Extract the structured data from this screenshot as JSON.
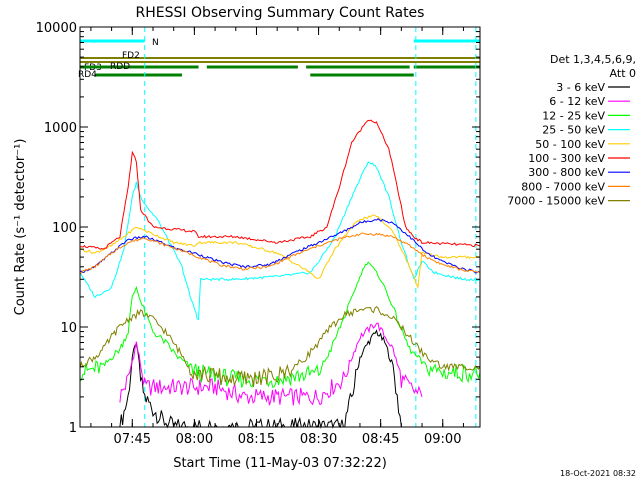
{
  "chart_data": {
    "type": "line",
    "title": "RHESSI Observing Summary Count Rates",
    "xlabel": "Start Time (11-May-03 07:32:22)",
    "ylabel": "Count Rate (s⁻¹ detector⁻¹)",
    "yscale": "log",
    "xlim": [
      "07:32:22",
      "09:09:00"
    ],
    "ylim": [
      1,
      10000
    ],
    "x_ticks": [
      "07:45",
      "08:00",
      "08:15",
      "08:30",
      "08:45",
      "09:00"
    ],
    "y_ticks": [
      "1",
      "10",
      "100",
      "1000",
      "10000"
    ],
    "legend_title": [
      "Det 1,3,4,5,6,9,",
      "Att 0"
    ],
    "legend_position": "right",
    "footer_date": "18-Oct-2021 08:32",
    "flag_bars": [
      {
        "label": "N",
        "color": "#00ffff",
        "segments": [
          [
            "07:32:22",
            "07:48:00"
          ],
          [
            "08:53:00",
            "09:09:00"
          ]
        ]
      },
      {
        "label": "FD2",
        "color": "#808000",
        "segments": [
          [
            "07:32:22",
            "09:09:00"
          ]
        ]
      },
      {
        "label": "FD3",
        "color": "#808000",
        "segments": [
          [
            "07:32:22",
            "09:09:00"
          ]
        ]
      },
      {
        "label": "RDD",
        "color": "#008000",
        "segments": [
          [
            "07:32:22",
            "08:01:00"
          ],
          [
            "08:03:00",
            "08:25:00"
          ],
          [
            "08:27:00",
            "08:52:00"
          ],
          [
            "08:53:00",
            "09:09:00"
          ]
        ]
      },
      {
        "label": "RD4",
        "color": "#008000",
        "segments": [
          [
            "07:36:00",
            "07:57:00"
          ],
          [
            "08:28:00",
            "08:53:00"
          ]
        ]
      }
    ],
    "night_markers": [
      "07:48:00",
      "08:53:30",
      "09:08:00"
    ],
    "series": [
      {
        "name": "3 - 6 keV",
        "color": "#000000",
        "points": [
          [
            "07:42:00",
            1
          ],
          [
            "07:44:00",
            2
          ],
          [
            "07:45:00",
            5
          ],
          [
            "07:46:00",
            7
          ],
          [
            "07:47:00",
            3
          ],
          [
            "07:48:00",
            2
          ],
          [
            "07:50:00",
            1.5
          ],
          [
            "07:52:00",
            1.2
          ],
          [
            "07:55:00",
            1
          ],
          [
            "08:36:00",
            1
          ],
          [
            "08:38:00",
            2
          ],
          [
            "08:40:00",
            5
          ],
          [
            "08:42:00",
            7
          ],
          [
            "08:44:00",
            9
          ],
          [
            "08:46:00",
            7
          ],
          [
            "08:48:00",
            4
          ],
          [
            "08:49:00",
            2
          ],
          [
            "08:50:00",
            1
          ]
        ]
      },
      {
        "name": "6 - 12 keV",
        "color": "#ff00ff",
        "points": [
          [
            "07:42:00",
            2
          ],
          [
            "07:44:00",
            3
          ],
          [
            "07:46:00",
            7
          ],
          [
            "07:48:00",
            2.5
          ],
          [
            "07:52:00",
            2.5
          ],
          [
            "07:58:00",
            2.5
          ],
          [
            "08:05:00",
            2.5
          ],
          [
            "08:12:00",
            2
          ],
          [
            "08:16:00",
            2
          ],
          [
            "08:30:00",
            2
          ],
          [
            "08:36:00",
            3
          ],
          [
            "08:40:00",
            8
          ],
          [
            "08:44:00",
            11
          ],
          [
            "08:48:00",
            6
          ],
          [
            "08:50:00",
            3
          ],
          [
            "08:52:00",
            2.5
          ],
          [
            "08:55:00",
            2
          ]
        ]
      },
      {
        "name": "12 - 25 keV",
        "color": "#00ff00",
        "points": [
          [
            "07:32:22",
            3.5
          ],
          [
            "07:38:00",
            4
          ],
          [
            "07:40:00",
            5
          ],
          [
            "07:42:00",
            6
          ],
          [
            "07:44:00",
            9
          ],
          [
            "07:45:00",
            20
          ],
          [
            "07:46:00",
            25
          ],
          [
            "07:47:00",
            18
          ],
          [
            "07:50:00",
            9
          ],
          [
            "07:53:00",
            7
          ],
          [
            "07:56:00",
            5
          ],
          [
            "07:59:00",
            4
          ],
          [
            "08:01:00",
            3.5
          ],
          [
            "08:10:00",
            3
          ],
          [
            "08:20:00",
            3
          ],
          [
            "08:30:00",
            3.5
          ],
          [
            "08:33:00",
            6
          ],
          [
            "08:36:00",
            12
          ],
          [
            "08:39:00",
            25
          ],
          [
            "08:41:00",
            40
          ],
          [
            "08:42:00",
            45
          ],
          [
            "08:44:00",
            35
          ],
          [
            "08:46:00",
            25
          ],
          [
            "08:49:00",
            12
          ],
          [
            "08:52:00",
            6
          ],
          [
            "08:56:00",
            4
          ],
          [
            "09:00:00",
            3.5
          ],
          [
            "09:09:00",
            3.5
          ]
        ]
      },
      {
        "name": "25 - 50 keV",
        "color": "#00ffff",
        "points": [
          [
            "07:32:22",
            35
          ],
          [
            "07:36:00",
            20
          ],
          [
            "07:40:00",
            25
          ],
          [
            "07:43:00",
            60
          ],
          [
            "07:45:00",
            200
          ],
          [
            "07:46:00",
            280
          ],
          [
            "07:47:00",
            200
          ],
          [
            "07:49:00",
            150
          ],
          [
            "07:51:00",
            120
          ],
          [
            "07:54:00",
            70
          ],
          [
            "07:57:00",
            40
          ],
          [
            "07:59:00",
            20
          ],
          [
            "08:01:00",
            12
          ],
          [
            "08:01:30",
            30
          ],
          [
            "08:10:00",
            30
          ],
          [
            "08:20:00",
            32
          ],
          [
            "08:28:00",
            35
          ],
          [
            "08:30:00",
            45
          ],
          [
            "08:34:00",
            80
          ],
          [
            "08:38:00",
            200
          ],
          [
            "08:42:00",
            450
          ],
          [
            "08:44:00",
            400
          ],
          [
            "08:47:00",
            200
          ],
          [
            "08:50:00",
            70
          ],
          [
            "08:53:00",
            30
          ],
          [
            "08:55:00",
            45
          ],
          [
            "08:58:00",
            35
          ],
          [
            "09:05:00",
            30
          ],
          [
            "09:09:00",
            30
          ]
        ]
      },
      {
        "name": "50 - 100 keV",
        "color": "#ffcc00",
        "points": [
          [
            "07:32:22",
            60
          ],
          [
            "07:36:00",
            55
          ],
          [
            "07:40:00",
            65
          ],
          [
            "07:43:00",
            80
          ],
          [
            "07:46:00",
            100
          ],
          [
            "07:50:00",
            85
          ],
          [
            "07:55:00",
            70
          ],
          [
            "08:00:00",
            65
          ],
          [
            "08:01:00",
            70
          ],
          [
            "08:10:00",
            70
          ],
          [
            "08:20:00",
            55
          ],
          [
            "08:28:00",
            35
          ],
          [
            "08:30:00",
            30
          ],
          [
            "08:34:00",
            60
          ],
          [
            "08:38:00",
            100
          ],
          [
            "08:40:00",
            120
          ],
          [
            "08:44:00",
            130
          ],
          [
            "08:48:00",
            90
          ],
          [
            "08:52:00",
            40
          ],
          [
            "08:54:00",
            25
          ],
          [
            "08:55:00",
            55
          ],
          [
            "09:00:00",
            50
          ],
          [
            "09:09:00",
            50
          ]
        ]
      },
      {
        "name": "100 - 300 keV",
        "color": "#ff0000",
        "points": [
          [
            "07:32:22",
            65
          ],
          [
            "07:38:00",
            60
          ],
          [
            "07:42:00",
            80
          ],
          [
            "07:44:00",
            250
          ],
          [
            "07:45:00",
            550
          ],
          [
            "07:46:00",
            450
          ],
          [
            "07:47:00",
            150
          ],
          [
            "07:50:00",
            100
          ],
          [
            "07:55:00",
            95
          ],
          [
            "08:00:00",
            90
          ],
          [
            "08:01:00",
            80
          ],
          [
            "08:10:00",
            80
          ],
          [
            "08:20:00",
            70
          ],
          [
            "08:28:00",
            80
          ],
          [
            "08:32:00",
            100
          ],
          [
            "08:35:00",
            250
          ],
          [
            "08:38:00",
            700
          ],
          [
            "08:42:00",
            1200
          ],
          [
            "08:44:00",
            1100
          ],
          [
            "08:47:00",
            600
          ],
          [
            "08:49:00",
            250
          ],
          [
            "08:51:00",
            100
          ],
          [
            "08:53:00",
            80
          ],
          [
            "08:55:00",
            70
          ],
          [
            "09:09:00",
            65
          ]
        ]
      },
      {
        "name": "300 - 800 keV",
        "color": "#0000ff",
        "points": [
          [
            "07:32:22",
            35
          ],
          [
            "07:36:00",
            40
          ],
          [
            "07:40:00",
            55
          ],
          [
            "07:44:00",
            75
          ],
          [
            "07:48:00",
            80
          ],
          [
            "07:52:00",
            70
          ],
          [
            "07:56:00",
            60
          ],
          [
            "08:00:00",
            55
          ],
          [
            "08:06:00",
            45
          ],
          [
            "08:12:00",
            40
          ],
          [
            "08:18:00",
            42
          ],
          [
            "08:24:00",
            55
          ],
          [
            "08:30:00",
            70
          ],
          [
            "08:36:00",
            90
          ],
          [
            "08:40:00",
            110
          ],
          [
            "08:44:00",
            120
          ],
          [
            "08:48:00",
            110
          ],
          [
            "08:52:00",
            80
          ],
          [
            "08:56:00",
            55
          ],
          [
            "09:00:00",
            45
          ],
          [
            "09:05:00",
            38
          ],
          [
            "09:09:00",
            35
          ]
        ]
      },
      {
        "name": "800 - 7000 keV",
        "color": "#ff8000",
        "points": [
          [
            "07:32:22",
            35
          ],
          [
            "07:36:00",
            40
          ],
          [
            "07:40:00",
            55
          ],
          [
            "07:44:00",
            70
          ],
          [
            "07:48:00",
            78
          ],
          [
            "07:52:00",
            68
          ],
          [
            "07:56:00",
            60
          ],
          [
            "08:00:00",
            52
          ],
          [
            "08:06:00",
            42
          ],
          [
            "08:12:00",
            38
          ],
          [
            "08:18:00",
            40
          ],
          [
            "08:24:00",
            52
          ],
          [
            "08:30:00",
            65
          ],
          [
            "08:36:00",
            78
          ],
          [
            "08:40:00",
            85
          ],
          [
            "08:44:00",
            85
          ],
          [
            "08:48:00",
            80
          ],
          [
            "08:52:00",
            65
          ],
          [
            "08:56:00",
            50
          ],
          [
            "09:00:00",
            42
          ],
          [
            "09:05:00",
            37
          ],
          [
            "09:09:00",
            35
          ]
        ]
      },
      {
        "name": "7000 - 15000 keV",
        "color": "#808000",
        "points": [
          [
            "07:32:22",
            4
          ],
          [
            "07:34:00",
            4.5
          ],
          [
            "07:36:00",
            5
          ],
          [
            "07:38:00",
            6
          ],
          [
            "07:40:00",
            8
          ],
          [
            "07:42:00",
            10
          ],
          [
            "07:44:00",
            12
          ],
          [
            "07:47:00",
            14
          ],
          [
            "07:50:00",
            12
          ],
          [
            "07:53:00",
            9
          ],
          [
            "07:56:00",
            6
          ],
          [
            "07:58:00",
            4.5
          ],
          [
            "08:00:00",
            3.5
          ],
          [
            "08:10:00",
            3
          ],
          [
            "08:20:00",
            3.2
          ],
          [
            "08:26:00",
            4.5
          ],
          [
            "08:30:00",
            7
          ],
          [
            "08:33:00",
            10
          ],
          [
            "08:36:00",
            13
          ],
          [
            "08:40:00",
            15
          ],
          [
            "08:44:00",
            15
          ],
          [
            "08:47:00",
            13
          ],
          [
            "08:50:00",
            10
          ],
          [
            "08:53:00",
            7
          ],
          [
            "08:56:00",
            5
          ],
          [
            "09:00:00",
            4
          ],
          [
            "09:09:00",
            4
          ]
        ]
      }
    ]
  }
}
